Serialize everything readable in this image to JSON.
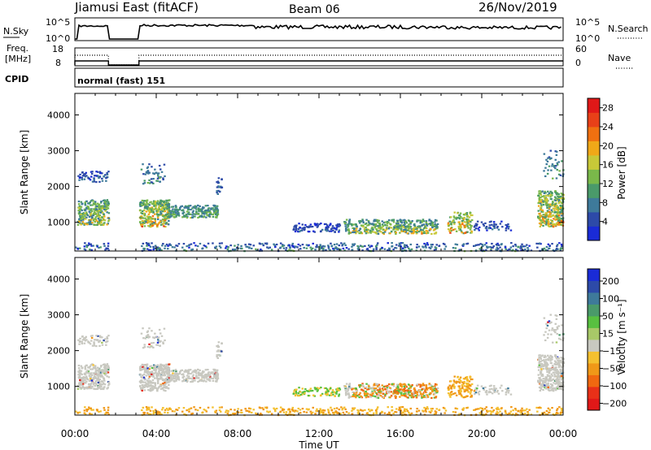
{
  "header": {
    "station": "Jiamusi East (fitACF)",
    "beam": "Beam 06",
    "date": "26/Nov/2019"
  },
  "sky_panel": {
    "left_label": "N.Sky",
    "left_ticks": [
      "10^5",
      "10^0"
    ],
    "right_ticks": [
      "10^5",
      "10^0"
    ],
    "right_label": "N.Search"
  },
  "freq_panel": {
    "left_label_1": "Freq.",
    "left_label_2": "[MHz]",
    "left_ticks": [
      "18",
      "8"
    ],
    "right_ticks": [
      "60",
      "0"
    ],
    "right_label": "Nave"
  },
  "cpid": {
    "label": "CPID",
    "mode": "normal (fast) 151"
  },
  "colors": {
    "power": [
      "#1a2bd6",
      "#2d4aa8",
      "#3e7a9a",
      "#4a9a6a",
      "#7ab84a",
      "#c8c838",
      "#f0a818",
      "#f07010",
      "#e84018",
      "#e01818"
    ],
    "velocity": [
      "#1a2bd6",
      "#2d4aa8",
      "#3e7a9a",
      "#4a9a6a",
      "#58c040",
      "#a8c868",
      "#c8c8c0",
      "#f4c030",
      "#f09818",
      "#f06810",
      "#e83018",
      "#e01818"
    ]
  },
  "chart_data": [
    {
      "type": "heatmap",
      "name": "power",
      "ylabel": "Slant Range [km]",
      "yticks": [
        "1000",
        "2000",
        "3000",
        "4000"
      ],
      "ylim": [
        200,
        4600
      ],
      "xlim": [
        0,
        24
      ],
      "xticks": [
        "00:00",
        "04:00",
        "08:00",
        "12:00",
        "16:00",
        "20:00",
        "00:00"
      ],
      "colorbar": {
        "label": "Power [dB]",
        "ticks": [
          "4",
          "8",
          "12",
          "16",
          "20",
          "24",
          "28"
        ],
        "range": [
          0,
          30
        ]
      }
    },
    {
      "type": "heatmap",
      "name": "velocity",
      "ylabel": "Slant Range [km]",
      "yticks": [
        "1000",
        "2000",
        "3000",
        "4000"
      ],
      "ylim": [
        200,
        4600
      ],
      "xlim": [
        0,
        24
      ],
      "xticks": [
        "00:00",
        "04:00",
        "08:00",
        "12:00",
        "16:00",
        "20:00",
        "00:00"
      ],
      "xlabel": "Time UT",
      "colorbar": {
        "label": "Velocity [m s⁻¹]",
        "ticks": [
          "200",
          "100",
          "50",
          "15",
          "-15",
          "-50",
          "-100",
          "-200"
        ]
      }
    }
  ]
}
